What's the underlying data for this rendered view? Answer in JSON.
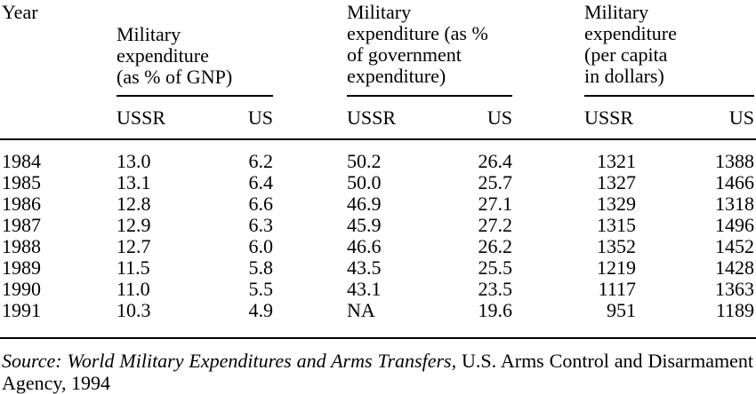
{
  "header": {
    "year": "Year",
    "groups": [
      {
        "lines": [
          "Military",
          "expenditure",
          "(as % of GNP)"
        ]
      },
      {
        "lines": [
          "Military",
          "expenditure (as %",
          "of government",
          "expenditure)"
        ]
      },
      {
        "lines": [
          "Military",
          "expenditure",
          "(per capita",
          "in dollars)"
        ]
      }
    ],
    "subheaders": [
      "USSR",
      "US",
      "USSR",
      "US",
      "USSR",
      "US"
    ]
  },
  "rows": [
    {
      "year": "1984",
      "cells": [
        "13.0",
        "6.2",
        "50.2",
        "26.4",
        "1321",
        "1388"
      ]
    },
    {
      "year": "1985",
      "cells": [
        "13.1",
        "6.4",
        "50.0",
        "25.7",
        "1327",
        "1466"
      ]
    },
    {
      "year": "1986",
      "cells": [
        "12.8",
        "6.6",
        "46.9",
        "27.1",
        "1329",
        "1318"
      ]
    },
    {
      "year": "1987",
      "cells": [
        "12.9",
        "6.3",
        "45.9",
        "27.2",
        "1315",
        "1496"
      ]
    },
    {
      "year": "1988",
      "cells": [
        "12.7",
        "6.0",
        "46.6",
        "26.2",
        "1352",
        "1452"
      ]
    },
    {
      "year": "1989",
      "cells": [
        "11.5",
        "5.8",
        "43.5",
        "25.5",
        "1219",
        "1428"
      ]
    },
    {
      "year": "1990",
      "cells": [
        "11.0",
        "5.5",
        "43.1",
        "23.5",
        "1117",
        "1363"
      ]
    },
    {
      "year": "1991",
      "cells": [
        "10.3",
        "4.9",
        "NA",
        "19.6",
        "951",
        "1189"
      ]
    }
  ],
  "source": {
    "label": "Source: World Military Expenditures and Arms Transfers",
    "rest": ", U.S. Arms Control and Disarmament Agency, 1994"
  }
}
